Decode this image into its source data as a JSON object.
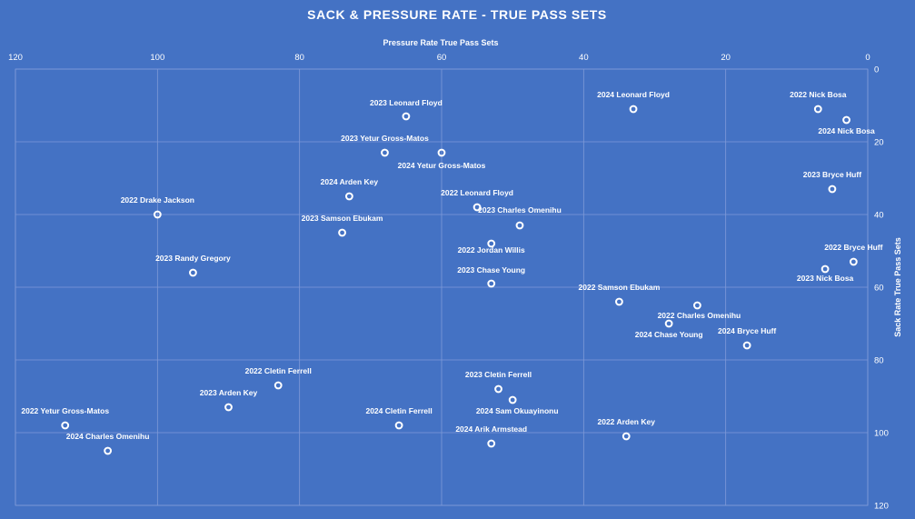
{
  "chart_data": {
    "type": "scatter",
    "title": "SACK & PRESSURE RATE - TRUE PASS SETS",
    "xlabel": "Pressure Rate True Pass Sets",
    "ylabel": "Sack Rate True Pass Sets",
    "x_axis_position": "top",
    "x_reversed": true,
    "y_reversed": true,
    "y_axis_position": "right",
    "xlim": [
      0,
      120
    ],
    "ylim": [
      0,
      120
    ],
    "x_ticks": [
      "0",
      "20",
      "40",
      "60",
      "80",
      "100",
      "120"
    ],
    "y_ticks": [
      "0",
      "20",
      "40",
      "60",
      "80",
      "100",
      "120"
    ],
    "grid": true,
    "points": [
      {
        "label": "2023 Leonard Floyd",
        "x": 65,
        "y": 13
      },
      {
        "label": "2024 Leonard Floyd",
        "x": 33,
        "y": 11
      },
      {
        "label": "2022 Nick Bosa",
        "x": 7,
        "y": 11
      },
      {
        "label": "2024 Nick Bosa",
        "x": 3,
        "y": 14
      },
      {
        "label": "2023 Yetur Gross-Matos",
        "x": 68,
        "y": 23
      },
      {
        "label": "2024 Yetur Gross-Matos",
        "x": 60,
        "y": 23
      },
      {
        "label": "2023 Bryce Huff",
        "x": 5,
        "y": 33
      },
      {
        "label": "2024 Arden Key",
        "x": 73,
        "y": 35
      },
      {
        "label": "2022 Leonard Floyd",
        "x": 55,
        "y": 38
      },
      {
        "label": "2023 Charles Omenihu",
        "x": 49,
        "y": 43
      },
      {
        "label": "2022 Drake Jackson",
        "x": 100,
        "y": 40
      },
      {
        "label": "2023 Samson Ebukam",
        "x": 74,
        "y": 45
      },
      {
        "label": "2022 Jordan Willis",
        "x": 53,
        "y": 48
      },
      {
        "label": "2022 Bryce Huff",
        "x": 2,
        "y": 53
      },
      {
        "label": "2023 Nick Bosa",
        "x": 6,
        "y": 55
      },
      {
        "label": "2023 Randy Gregory",
        "x": 95,
        "y": 56
      },
      {
        "label": "2023 Chase Young",
        "x": 53,
        "y": 59
      },
      {
        "label": "2022 Samson Ebukam",
        "x": 35,
        "y": 64
      },
      {
        "label": "2022 Charles Omenihu",
        "x": 24,
        "y": 65
      },
      {
        "label": "2024 Chase Young",
        "x": 28,
        "y": 70
      },
      {
        "label": "2024 Bryce Huff",
        "x": 17,
        "y": 76
      },
      {
        "label": "2022 Cletin Ferrell",
        "x": 83,
        "y": 87
      },
      {
        "label": "2023 Cletin Ferrell",
        "x": 52,
        "y": 88
      },
      {
        "label": "2024 Sam Okuayinonu",
        "x": 50,
        "y": 91
      },
      {
        "label": "2023 Arden Key",
        "x": 90,
        "y": 93
      },
      {
        "label": "2024 Cletin Ferrell",
        "x": 66,
        "y": 98
      },
      {
        "label": "2022 Yetur Gross-Matos",
        "x": 113,
        "y": 98
      },
      {
        "label": "2022 Arden Key",
        "x": 34,
        "y": 101
      },
      {
        "label": "2024 Arik Armstead",
        "x": 53,
        "y": 103
      },
      {
        "label": "2024 Charles Omenihu",
        "x": 107,
        "y": 105
      }
    ]
  }
}
